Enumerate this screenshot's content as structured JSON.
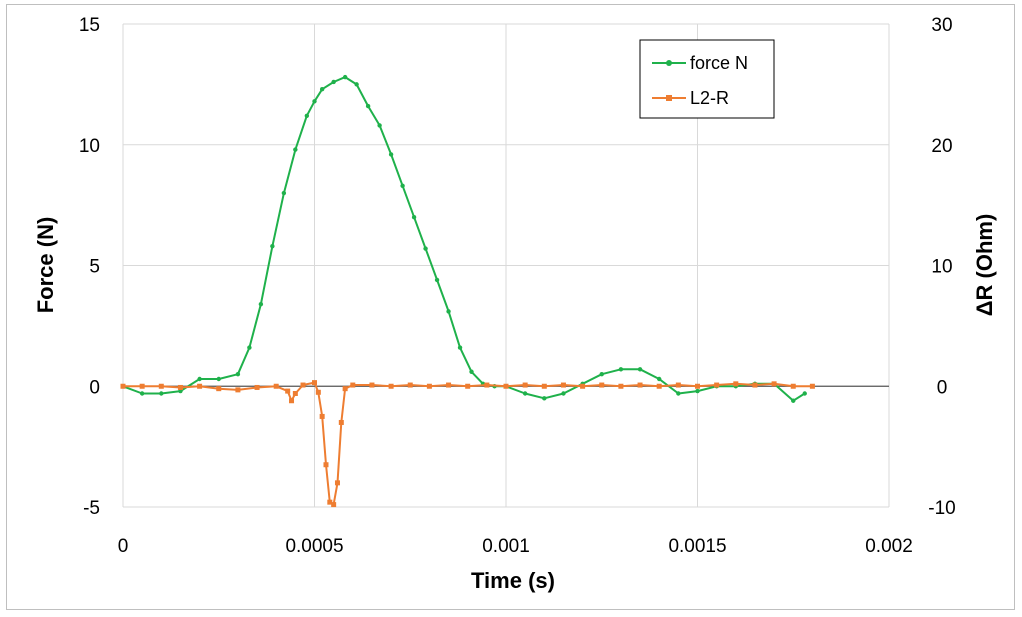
{
  "chart_data": {
    "type": "line",
    "xlabel": "Time (s)",
    "ylabel": "Force (N)",
    "y2label": "ΔR (Ohm)",
    "xlim": [
      0,
      0.002
    ],
    "ylim": [
      -5,
      15
    ],
    "y2lim": [
      -10,
      30
    ],
    "x_ticks": [
      "0",
      "0.0005",
      "0.001",
      "0.0015",
      "0.002"
    ],
    "y_ticks": [
      "15",
      "10",
      "5",
      "0",
      "-5"
    ],
    "y2_ticks": [
      "30",
      "20",
      "10",
      "0",
      "-10"
    ],
    "grid": true,
    "legend_position": "top-right",
    "series": [
      {
        "name": "force N",
        "axis": "left",
        "color": "#1fb14b",
        "marker": "circle",
        "x": [
          0,
          5e-05,
          0.0001,
          0.00015,
          0.0002,
          0.00025,
          0.0003,
          0.00033,
          0.00036,
          0.00039,
          0.00042,
          0.00045,
          0.00048,
          0.0005,
          0.00052,
          0.00055,
          0.00058,
          0.00061,
          0.00064,
          0.00067,
          0.0007,
          0.00073,
          0.00076,
          0.00079,
          0.00082,
          0.00085,
          0.00088,
          0.00091,
          0.00094,
          0.00097,
          0.001,
          0.00105,
          0.0011,
          0.00115,
          0.0012,
          0.00125,
          0.0013,
          0.00135,
          0.0014,
          0.00145,
          0.0015,
          0.00155,
          0.0016,
          0.00165,
          0.0017,
          0.00175,
          0.00178
        ],
        "y": [
          0,
          -0.3,
          -0.3,
          -0.2,
          0.3,
          0.3,
          0.5,
          1.6,
          3.4,
          5.8,
          8.0,
          9.8,
          11.2,
          11.8,
          12.3,
          12.6,
          12.8,
          12.5,
          11.6,
          10.8,
          9.6,
          8.3,
          7.0,
          5.7,
          4.4,
          3.1,
          1.6,
          0.6,
          0.1,
          0.0,
          0.0,
          -0.3,
          -0.5,
          -0.3,
          0.1,
          0.5,
          0.7,
          0.7,
          0.3,
          -0.3,
          -0.2,
          0.0,
          0.0,
          0.1,
          0.1,
          -0.6,
          -0.3
        ]
      },
      {
        "name": "L2-R",
        "axis": "right",
        "color": "#ee7d31",
        "marker": "square",
        "x": [
          0,
          5e-05,
          0.0001,
          0.00015,
          0.0002,
          0.00025,
          0.0003,
          0.00035,
          0.0004,
          0.00043,
          0.00044,
          0.00045,
          0.00047,
          0.0005,
          0.00051,
          0.00052,
          0.00053,
          0.00054,
          0.00055,
          0.00056,
          0.00057,
          0.00058,
          0.0006,
          0.00065,
          0.0007,
          0.00075,
          0.0008,
          0.00085,
          0.0009,
          0.00095,
          0.001,
          0.00105,
          0.0011,
          0.00115,
          0.0012,
          0.00125,
          0.0013,
          0.00135,
          0.0014,
          0.00145,
          0.0015,
          0.00155,
          0.0016,
          0.00165,
          0.0017,
          0.00175,
          0.0018
        ],
        "y": [
          0,
          0,
          0,
          -0.1,
          0,
          -0.2,
          -0.3,
          -0.1,
          0,
          -0.4,
          -1.2,
          -0.6,
          0.1,
          0.3,
          -0.5,
          -2.5,
          -6.5,
          -9.6,
          -9.8,
          -8.0,
          -3.0,
          -0.2,
          0.1,
          0.1,
          0,
          0.1,
          0,
          0.1,
          0,
          0.1,
          0,
          0.1,
          0,
          0.1,
          0,
          0.1,
          0,
          0.1,
          0,
          0.1,
          0,
          0.1,
          0.2,
          0.1,
          0.2,
          0,
          0
        ]
      }
    ]
  }
}
